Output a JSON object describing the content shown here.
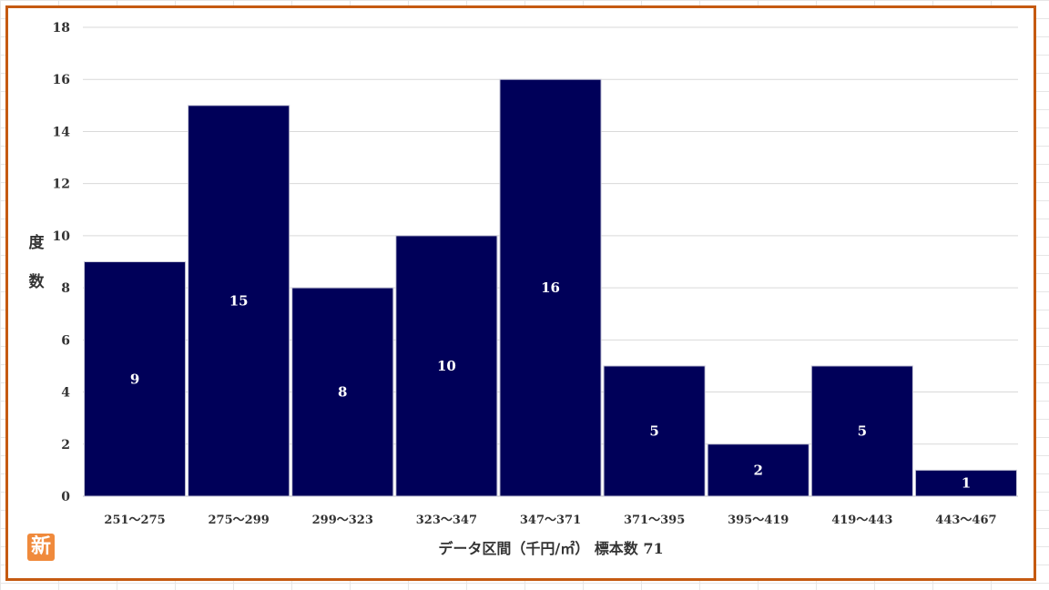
{
  "chart_data": {
    "type": "bar",
    "categories": [
      "251〜275",
      "275〜299",
      "299〜323",
      "323〜347",
      "347〜371",
      "371〜395",
      "395〜419",
      "419〜443",
      "443〜467"
    ],
    "values": [
      9,
      15,
      8,
      10,
      16,
      5,
      2,
      5,
      1
    ],
    "ylim": [
      0,
      18
    ],
    "yticks": [
      0,
      2,
      4,
      6,
      8,
      10,
      12,
      14,
      16,
      18
    ],
    "xlabel": "データ区間（千円/㎡） 標本数 71",
    "ylabel": "度数",
    "bar_color": "#000059",
    "grid": true,
    "data_labels": true
  },
  "badge": {
    "text": "新",
    "color": "#f08a3c"
  },
  "frame_color": "#c55a11"
}
